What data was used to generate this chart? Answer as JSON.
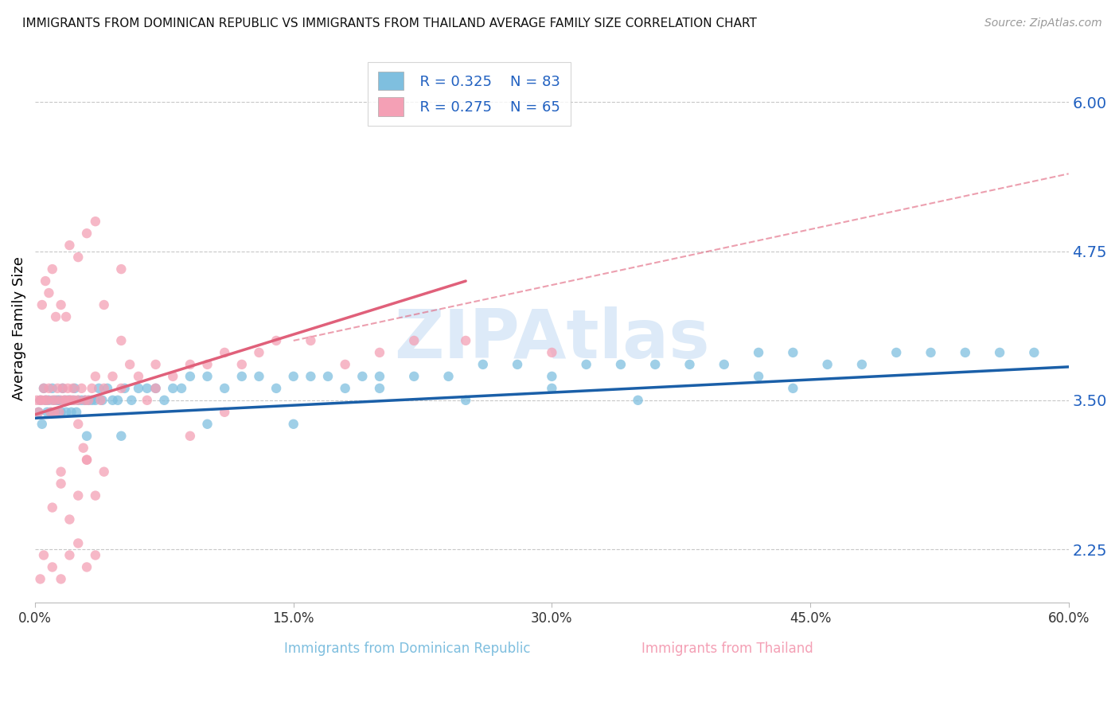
{
  "title": "IMMIGRANTS FROM DOMINICAN REPUBLIC VS IMMIGRANTS FROM THAILAND AVERAGE FAMILY SIZE CORRELATION CHART",
  "source": "Source: ZipAtlas.com",
  "ylabel": "Average Family Size",
  "xlim": [
    0.0,
    60.0
  ],
  "ylim": [
    1.8,
    6.4
  ],
  "yticks": [
    2.25,
    3.5,
    4.75,
    6.0
  ],
  "xticks": [
    0.0,
    15.0,
    30.0,
    45.0,
    60.0
  ],
  "blue_R": 0.325,
  "blue_N": 83,
  "pink_R": 0.275,
  "pink_N": 65,
  "blue_color": "#7fbfdf",
  "pink_color": "#f4a0b5",
  "blue_line_color": "#1a5fa8",
  "pink_line_color": "#e0607a",
  "dot_alpha": 0.75,
  "dot_size": 80,
  "watermark": "ZIPAtlas",
  "watermark_color": "#aaccee",
  "blue_scatter_x": [
    0.2,
    0.3,
    0.4,
    0.5,
    0.6,
    0.7,
    0.8,
    0.9,
    1.0,
    1.1,
    1.2,
    1.3,
    1.4,
    1.5,
    1.6,
    1.7,
    1.8,
    1.9,
    2.0,
    2.1,
    2.2,
    2.3,
    2.4,
    2.5,
    2.7,
    2.9,
    3.1,
    3.3,
    3.5,
    3.7,
    3.9,
    4.2,
    4.5,
    4.8,
    5.2,
    5.6,
    6.0,
    6.5,
    7.0,
    7.5,
    8.0,
    8.5,
    9.0,
    10.0,
    11.0,
    12.0,
    13.0,
    14.0,
    15.0,
    16.0,
    17.0,
    18.0,
    19.0,
    20.0,
    22.0,
    24.0,
    26.0,
    28.0,
    30.0,
    32.0,
    34.0,
    36.0,
    38.0,
    40.0,
    42.0,
    44.0,
    46.0,
    48.0,
    50.0,
    52.0,
    54.0,
    56.0,
    58.0,
    42.0,
    44.0,
    30.0,
    35.0,
    25.0,
    20.0,
    15.0,
    10.0,
    5.0,
    3.0
  ],
  "blue_scatter_y": [
    3.4,
    3.5,
    3.3,
    3.6,
    3.5,
    3.4,
    3.5,
    3.4,
    3.6,
    3.5,
    3.4,
    3.5,
    3.5,
    3.4,
    3.6,
    3.5,
    3.4,
    3.5,
    3.5,
    3.4,
    3.5,
    3.6,
    3.4,
    3.5,
    3.5,
    3.5,
    3.5,
    3.5,
    3.5,
    3.6,
    3.5,
    3.6,
    3.5,
    3.5,
    3.6,
    3.5,
    3.6,
    3.6,
    3.6,
    3.5,
    3.6,
    3.6,
    3.7,
    3.7,
    3.6,
    3.7,
    3.7,
    3.6,
    3.7,
    3.7,
    3.7,
    3.6,
    3.7,
    3.7,
    3.7,
    3.7,
    3.8,
    3.8,
    3.7,
    3.8,
    3.8,
    3.8,
    3.8,
    3.8,
    3.9,
    3.9,
    3.8,
    3.8,
    3.9,
    3.9,
    3.9,
    3.9,
    3.9,
    3.7,
    3.6,
    3.6,
    3.5,
    3.5,
    3.6,
    3.3,
    3.3,
    3.2,
    3.2
  ],
  "pink_scatter_x": [
    0.1,
    0.2,
    0.3,
    0.4,
    0.5,
    0.6,
    0.7,
    0.8,
    0.9,
    1.0,
    1.1,
    1.2,
    1.3,
    1.4,
    1.5,
    1.6,
    1.7,
    1.8,
    1.9,
    2.0,
    2.1,
    2.2,
    2.3,
    2.5,
    2.7,
    2.9,
    3.1,
    3.3,
    3.5,
    3.8,
    4.0,
    4.5,
    5.0,
    5.5,
    6.0,
    7.0,
    8.0,
    9.0,
    10.0,
    11.0,
    12.0,
    13.0,
    14.0,
    16.0,
    18.0,
    20.0,
    22.0,
    25.0,
    30.0,
    0.4,
    0.6,
    0.8,
    1.0,
    1.2,
    1.5,
    1.8,
    2.0,
    2.5,
    3.0,
    3.5,
    4.0,
    5.0,
    7.0,
    9.0,
    11.0
  ],
  "pink_scatter_y": [
    3.5,
    3.4,
    3.5,
    3.5,
    3.6,
    3.5,
    3.5,
    3.6,
    3.4,
    3.5,
    3.4,
    3.5,
    3.6,
    3.4,
    3.5,
    3.6,
    3.5,
    3.5,
    3.6,
    3.5,
    3.5,
    3.6,
    3.5,
    3.5,
    3.6,
    3.5,
    3.5,
    3.6,
    3.7,
    3.5,
    3.6,
    3.7,
    3.6,
    3.8,
    3.7,
    3.8,
    3.7,
    3.8,
    3.8,
    3.9,
    3.8,
    3.9,
    4.0,
    4.0,
    3.8,
    3.9,
    4.0,
    4.0,
    3.9,
    4.3,
    4.5,
    4.4,
    4.6,
    4.2,
    4.3,
    4.2,
    4.8,
    4.7,
    4.9,
    5.0,
    4.3,
    4.0,
    3.6,
    3.2,
    3.4
  ],
  "pink_extra_x": [
    5.0,
    2.5,
    3.0,
    1.5,
    1.0,
    2.0,
    1.5,
    6.5,
    3.0,
    2.5,
    0.5,
    0.3,
    4.0,
    3.5,
    2.8
  ],
  "pink_extra_y": [
    4.6,
    3.3,
    3.0,
    2.8,
    2.6,
    2.5,
    2.9,
    3.5,
    3.0,
    2.7,
    2.2,
    2.0,
    2.9,
    2.7,
    3.1
  ],
  "pink_low_x": [
    1.0,
    1.5,
    2.0,
    2.5,
    3.0,
    3.5
  ],
  "pink_low_y": [
    2.1,
    2.0,
    2.2,
    2.3,
    2.1,
    2.2
  ],
  "blue_trend_x0": 0.0,
  "blue_trend_y0": 3.35,
  "blue_trend_x1": 60.0,
  "blue_trend_y1": 3.78,
  "pink_trend_x0": 0.0,
  "pink_trend_y0": 3.38,
  "pink_trend_x1": 25.0,
  "pink_trend_y1": 4.5,
  "ref_dash_x0": 15.0,
  "ref_dash_y0": 4.0,
  "ref_dash_x1": 60.0,
  "ref_dash_y1": 5.4
}
